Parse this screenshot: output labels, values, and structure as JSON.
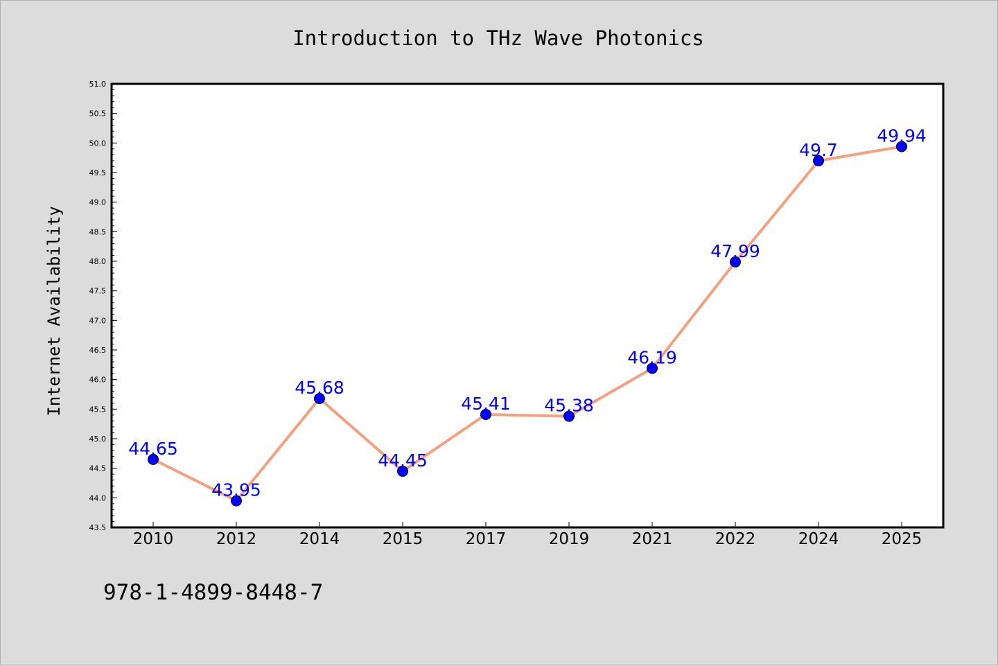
{
  "isbn": "978-1-4899-8448-7",
  "chart_data": {
    "type": "line",
    "title": "Introduction to THz Wave Photonics",
    "xlabel": "",
    "ylabel": "Internet Availability",
    "categories": [
      "2010",
      "2012",
      "2014",
      "2015",
      "2017",
      "2019",
      "2021",
      "2022",
      "2024",
      "2025"
    ],
    "values": [
      44.65,
      43.95,
      45.68,
      44.45,
      45.41,
      45.38,
      46.19,
      47.99,
      49.7,
      49.94
    ],
    "data_labels": [
      "44.65",
      "43.95",
      "45.68",
      "44.45",
      "45.41",
      "45.38",
      "46.19",
      "47.99",
      "49.7",
      "49.94"
    ],
    "ylim": [
      43.5,
      51.0
    ],
    "yticks": [
      "43.5",
      "44.0",
      "44.5",
      "45.0",
      "45.5",
      "46.0",
      "46.5",
      "47.0",
      "47.5",
      "48.0",
      "48.5",
      "49.0",
      "49.5",
      "50.0",
      "50.5",
      "51.0"
    ],
    "grid": false,
    "legend": "none",
    "line_color": "#f4a07e",
    "marker_color": "#0000ff",
    "label_color": "#0000ff"
  }
}
